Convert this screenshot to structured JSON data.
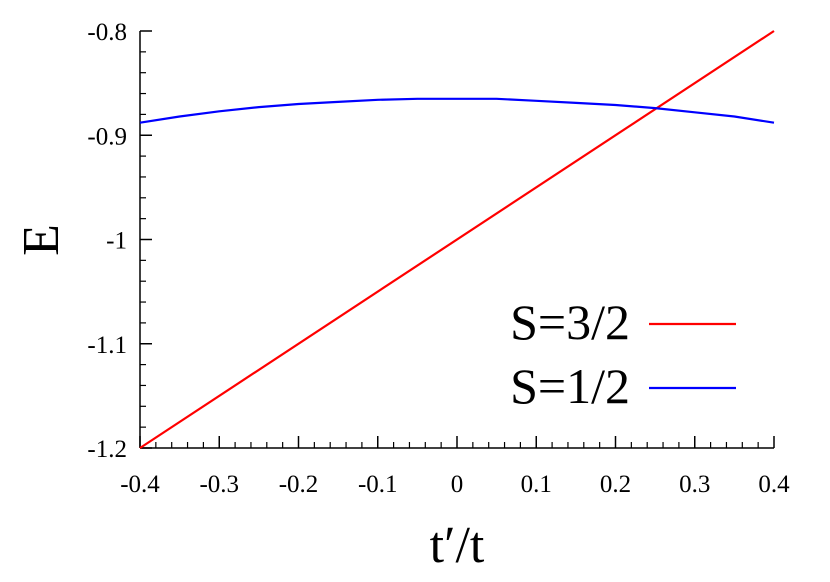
{
  "chart_data": {
    "type": "line",
    "xlabel": "t′/t",
    "ylabel": "E",
    "xlim": [
      -0.4,
      0.4
    ],
    "ylim": [
      -1.2,
      -0.8
    ],
    "x_ticks": [
      "-0.4",
      "-0.3",
      "-0.2",
      "-0.1",
      "0",
      "0.1",
      "0.2",
      "0.3",
      "0.4"
    ],
    "y_ticks": [
      "-0.8",
      "-0.9",
      "-1",
      "-1.1",
      "-1.2"
    ],
    "grid": false,
    "legend_position": "bottom-right",
    "series": [
      {
        "name": "S=3/2",
        "color": "#ff0000",
        "x": [
          -0.4,
          0.4
        ],
        "y": [
          -1.2,
          -0.8
        ]
      },
      {
        "name": "S=1/2",
        "color": "#0000ff",
        "x": [
          -0.4,
          -0.35,
          -0.3,
          -0.25,
          -0.2,
          -0.15,
          -0.1,
          -0.05,
          0,
          0.05,
          0.1,
          0.15,
          0.2,
          0.25,
          0.3,
          0.35,
          0.4
        ],
        "y": [
          -0.888,
          -0.882,
          -0.877,
          -0.873,
          -0.87,
          -0.868,
          -0.866,
          -0.865,
          -0.865,
          -0.865,
          -0.867,
          -0.869,
          -0.871,
          -0.874,
          -0.878,
          -0.882,
          -0.888
        ]
      }
    ]
  }
}
